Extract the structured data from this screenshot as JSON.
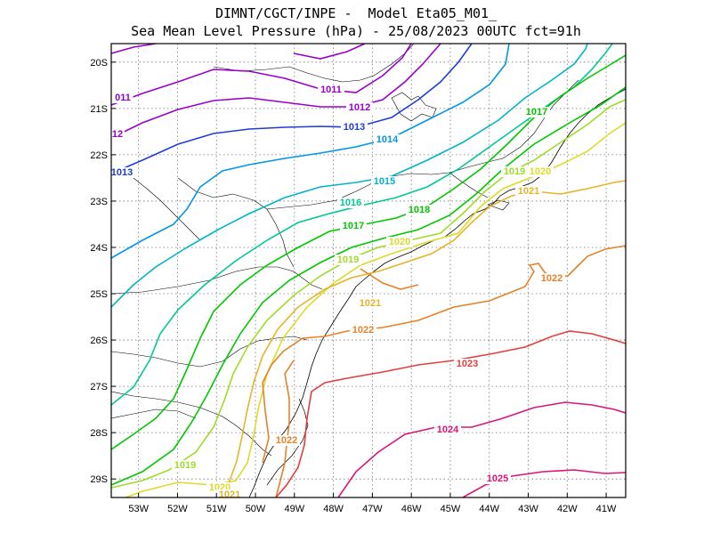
{
  "title": {
    "line1": "DIMNT/CGCT/INPE -  Model Eta05_M01_",
    "line2": "Sea Mean Level Pressure (hPa) - 25/08/2023 00UTC fct=91h"
  },
  "map": {
    "lon_range": [
      -53.7,
      -40.5
    ],
    "lat_range": [
      -29.4,
      -19.6
    ],
    "x_ticks": [
      "53W",
      "52W",
      "51W",
      "50W",
      "49W",
      "48W",
      "47W",
      "46W",
      "45W",
      "44W",
      "43W",
      "42W",
      "41W"
    ],
    "y_ticks": [
      "20S",
      "21S",
      "22S",
      "23S",
      "24S",
      "25S",
      "26S",
      "27S",
      "28S",
      "29S"
    ],
    "contour_interval_hPa": 1,
    "gridlines": "dotted"
  },
  "contours": [
    {
      "value": 1011,
      "label": "1011",
      "color": "#9900cc"
    },
    {
      "value": 1012,
      "label": "1012",
      "color": "#9900cc"
    },
    {
      "value": 1013,
      "label": "1013",
      "color": "#1e3cdc"
    },
    {
      "value": 1014,
      "label": "1014",
      "color": "#0096e6"
    },
    {
      "value": 1015,
      "label": "1015",
      "color": "#00b4c8"
    },
    {
      "value": 1016,
      "label": "1016",
      "color": "#00c896"
    },
    {
      "value": 1017,
      "label": "1017",
      "color": "#00c800"
    },
    {
      "value": 1018,
      "label": "1018",
      "color": "#00c800"
    },
    {
      "value": 1019,
      "label": "1019",
      "color": "#a0dc28"
    },
    {
      "value": 1020,
      "label": "1020",
      "color": "#dcdc28"
    },
    {
      "value": 1021,
      "label": "1021",
      "color": "#e6b428"
    },
    {
      "value": 1022,
      "label": "1022",
      "color": "#e68228"
    },
    {
      "value": 1023,
      "label": "1023",
      "color": "#e63c3c"
    },
    {
      "value": 1024,
      "label": "1024",
      "color": "#dc1478"
    },
    {
      "value": 1025,
      "label": "1025",
      "color": "#dc1478"
    }
  ],
  "labels": [
    {
      "text": "1011",
      "color": "#9900cc"
    },
    {
      "text": "011",
      "color": "#9900cc"
    },
    {
      "text": "1012",
      "color": "#9900cc"
    },
    {
      "text": "12",
      "color": "#9900cc"
    },
    {
      "text": "1013",
      "color": "#1e3cdc"
    },
    {
      "text": "1013",
      "color": "#1e3cdc"
    },
    {
      "text": "1014",
      "color": "#0096e6"
    },
    {
      "text": "1015",
      "color": "#00b4c8"
    },
    {
      "text": "1016",
      "color": "#00c896"
    },
    {
      "text": "1017",
      "color": "#00c800"
    },
    {
      "text": "1017",
      "color": "#00c800"
    },
    {
      "text": "1018",
      "color": "#00c800"
    },
    {
      "text": "1019",
      "color": "#a0dc28"
    },
    {
      "text": "1019",
      "color": "#a0dc28"
    },
    {
      "text": "1019",
      "color": "#a0dc28"
    },
    {
      "text": "1020",
      "color": "#dcdc28"
    },
    {
      "text": "1020",
      "color": "#dcdc28"
    },
    {
      "text": "1020",
      "color": "#dcdc28"
    },
    {
      "text": "1021",
      "color": "#e6b428"
    },
    {
      "text": "1021",
      "color": "#e6b428"
    },
    {
      "text": "1021",
      "color": "#e6b428"
    },
    {
      "text": "1022",
      "color": "#e68228"
    },
    {
      "text": "1022",
      "color": "#e68228"
    },
    {
      "text": "1022",
      "color": "#e68228"
    },
    {
      "text": "1023",
      "color": "#e63c3c"
    },
    {
      "text": "1024",
      "color": "#dc1478"
    },
    {
      "text": "1025",
      "color": "#dc1478"
    }
  ]
}
